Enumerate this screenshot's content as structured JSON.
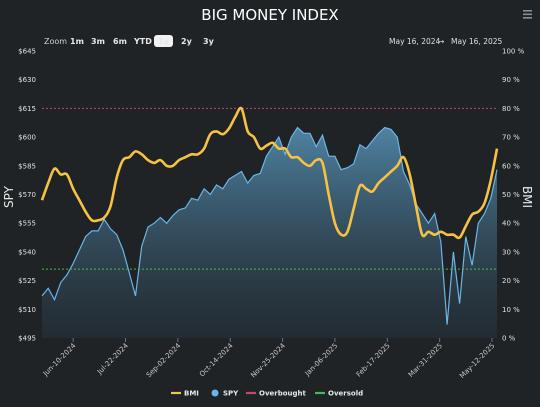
{
  "chart_data": {
    "type": "line",
    "title": "BIG MONEY INDEX",
    "zoom": {
      "label": "Zoom",
      "options": [
        "1m",
        "3m",
        "6m",
        "YTD",
        "1y",
        "2y",
        "3y"
      ],
      "selected": "1y"
    },
    "date_range": {
      "from": "May 16, 2024",
      "arrow": "→",
      "to": "May 16, 2025"
    },
    "left_axis": {
      "label": "SPY",
      "ticks": [
        "$495",
        "$510",
        "$525",
        "$540",
        "$555",
        "$570",
        "$585",
        "$600",
        "$615",
        "$630",
        "$645"
      ],
      "range": [
        495,
        645
      ]
    },
    "right_axis": {
      "label": "BMI",
      "ticks": [
        "0 %",
        "10 %",
        "20 %",
        "30 %",
        "40 %",
        "50 %",
        "60 %",
        "70 %",
        "80 %",
        "90 %",
        "100 %"
      ],
      "range": [
        0,
        100
      ]
    },
    "x_ticks": [
      "Jun-10-2024",
      "Jul-22-2024",
      "Sep-02-2024",
      "Oct-14-2024",
      "Nov-25-2024",
      "Jan-06-2025",
      "Feb-17-2025",
      "Mar-31-2025",
      "May-12-2025"
    ],
    "x_tick_days": [
      25,
      67,
      109,
      151,
      193,
      235,
      277,
      319,
      361
    ],
    "x_total_days": 365,
    "thresholds": {
      "overbought": 80,
      "oversold": 24
    },
    "legend": [
      {
        "name": "BMI",
        "color": "#f5c242",
        "kind": "line"
      },
      {
        "name": "SPY",
        "color": "#6ab6e8",
        "kind": "dot"
      },
      {
        "name": "Overbought",
        "color": "#c9456b",
        "kind": "line"
      },
      {
        "name": "Oversold",
        "color": "#3fbf4f",
        "kind": "line"
      }
    ],
    "series": [
      {
        "name": "BMI",
        "axis": "right",
        "color": "#f5c242",
        "x": [
          0,
          5,
          10,
          15,
          20,
          25,
          30,
          35,
          40,
          45,
          50,
          55,
          60,
          65,
          70,
          75,
          80,
          85,
          90,
          95,
          100,
          105,
          110,
          115,
          120,
          125,
          130,
          135,
          140,
          145,
          150,
          155,
          160,
          165,
          170,
          175,
          180,
          185,
          190,
          195,
          200,
          205,
          210,
          215,
          220,
          225,
          230,
          235,
          240,
          245,
          250,
          255,
          260,
          265,
          270,
          275,
          280,
          285,
          290,
          295,
          300,
          305,
          310,
          315,
          320,
          325,
          330,
          335,
          340,
          345,
          350,
          355,
          360,
          365
        ],
        "values": [
          48,
          54,
          59,
          57,
          57,
          52,
          48,
          44,
          41,
          41,
          42,
          46,
          56,
          62,
          63,
          65,
          64,
          62,
          61,
          62,
          60,
          60,
          62,
          63,
          64,
          64,
          66,
          71,
          72,
          71,
          73,
          77,
          80,
          72,
          70,
          66,
          67,
          68,
          66,
          66,
          63,
          63,
          61,
          60,
          62,
          61,
          50,
          40,
          36,
          37,
          45,
          53,
          52,
          51,
          54,
          56,
          58,
          60,
          63,
          57,
          46,
          36,
          37,
          36,
          37,
          36,
          36,
          35,
          39,
          43,
          44,
          47,
          55,
          66
        ]
      },
      {
        "name": "SPY",
        "axis": "left",
        "color": "#6ab6e8",
        "x": [
          0,
          5,
          10,
          15,
          20,
          25,
          30,
          35,
          40,
          45,
          50,
          55,
          60,
          65,
          70,
          75,
          80,
          85,
          90,
          95,
          100,
          105,
          110,
          115,
          120,
          125,
          130,
          135,
          140,
          145,
          150,
          155,
          160,
          165,
          170,
          175,
          180,
          185,
          190,
          195,
          200,
          205,
          210,
          215,
          220,
          225,
          230,
          235,
          240,
          245,
          250,
          255,
          260,
          265,
          270,
          275,
          280,
          285,
          290,
          295,
          300,
          305,
          310,
          315,
          320,
          325,
          330,
          335,
          340,
          345,
          350,
          355,
          360,
          365
        ],
        "values": [
          517,
          521,
          515,
          524,
          528,
          534,
          541,
          548,
          551,
          551,
          557,
          552,
          549,
          541,
          529,
          517,
          543,
          553,
          555,
          558,
          555,
          559,
          562,
          563,
          568,
          567,
          573,
          570,
          575,
          573,
          578,
          580,
          582,
          576,
          580,
          581,
          590,
          595,
          600,
          591,
          600,
          605,
          602,
          602,
          595,
          601,
          590,
          590,
          583,
          584,
          586,
          596,
          594,
          598,
          602,
          605,
          604,
          600,
          582,
          575,
          565,
          560,
          555,
          560,
          545,
          502,
          540,
          513,
          548,
          533,
          555,
          560,
          568,
          583
        ]
      }
    ]
  }
}
